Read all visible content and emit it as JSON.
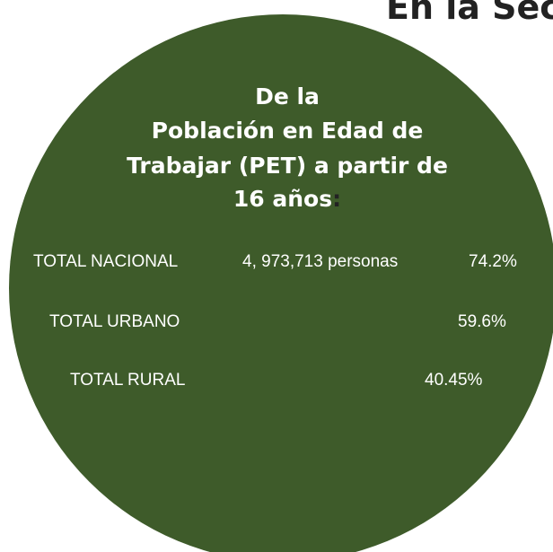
{
  "header": {
    "text": "En la Sec"
  },
  "title": {
    "lines": [
      "De la",
      "Población en Edad de",
      "Trabajar (PET) a partir de",
      "16 años"
    ],
    "colon": ":"
  },
  "rows": [
    {
      "label": "TOTAL NACIONAL",
      "detail": "4, 973,713 personas",
      "value": "74.2%"
    },
    {
      "label": "TOTAL URBANO",
      "value": "59.6%"
    },
    {
      "label": "TOTAL RURAL",
      "value": "40.45%"
    }
  ]
}
